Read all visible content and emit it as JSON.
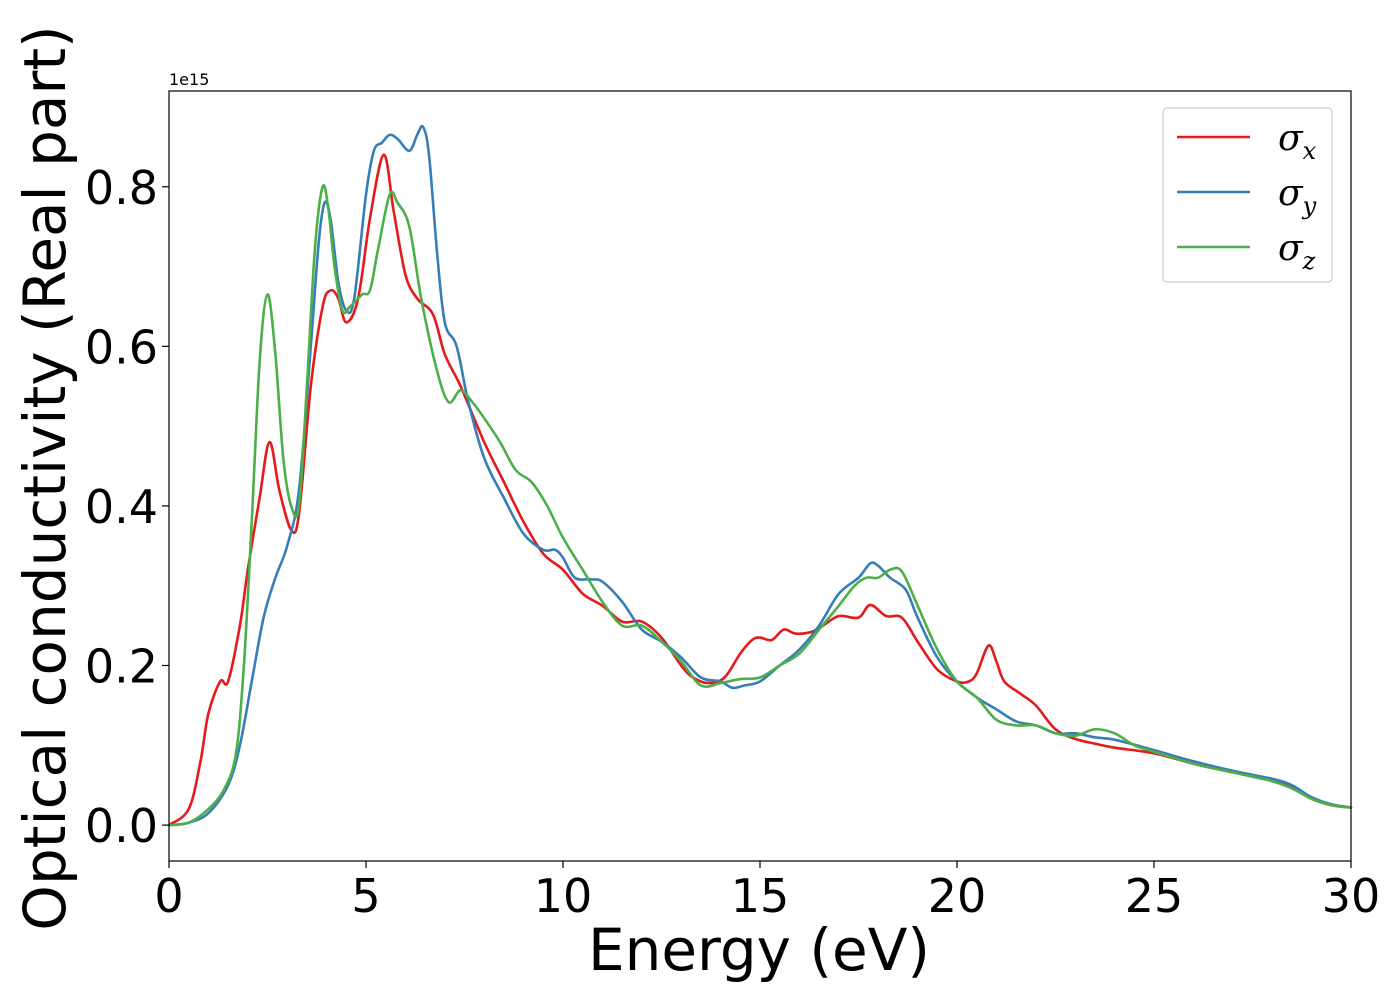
{
  "chart_data": {
    "type": "line",
    "xlabel": "Energy (eV)",
    "ylabel": "Optical conductivity (Real part)",
    "y_offset_label": "1e15",
    "xlim": [
      0,
      30
    ],
    "ylim": [
      -0.045,
      0.92
    ],
    "x_ticks": [
      0,
      5,
      10,
      15,
      20,
      25,
      30
    ],
    "x_tick_labels": [
      "0",
      "5",
      "10",
      "15",
      "20",
      "25",
      "30"
    ],
    "y_ticks": [
      0.0,
      0.2,
      0.4,
      0.6,
      0.8
    ],
    "y_tick_labels": [
      "0.0",
      "0.2",
      "0.4",
      "0.6",
      "0.8"
    ],
    "grid": false,
    "legend_position": "top-right",
    "series": [
      {
        "name": "σx",
        "legend_base": "σ",
        "legend_sub": "x",
        "color": "#e41a1c",
        "points": [
          [
            0,
            0
          ],
          [
            0.5,
            0.02
          ],
          [
            0.8,
            0.08
          ],
          [
            1.0,
            0.14
          ],
          [
            1.3,
            0.18
          ],
          [
            1.5,
            0.18
          ],
          [
            1.8,
            0.25
          ],
          [
            2.0,
            0.32
          ],
          [
            2.3,
            0.41
          ],
          [
            2.55,
            0.48
          ],
          [
            2.8,
            0.42
          ],
          [
            3.1,
            0.37
          ],
          [
            3.3,
            0.39
          ],
          [
            3.6,
            0.55
          ],
          [
            3.9,
            0.65
          ],
          [
            4.1,
            0.67
          ],
          [
            4.3,
            0.66
          ],
          [
            4.5,
            0.63
          ],
          [
            4.8,
            0.66
          ],
          [
            5.1,
            0.76
          ],
          [
            5.45,
            0.84
          ],
          [
            5.7,
            0.77
          ],
          [
            6.0,
            0.69
          ],
          [
            6.3,
            0.66
          ],
          [
            6.7,
            0.64
          ],
          [
            7.0,
            0.59
          ],
          [
            7.4,
            0.55
          ],
          [
            8.0,
            0.48
          ],
          [
            8.5,
            0.43
          ],
          [
            9.0,
            0.38
          ],
          [
            9.5,
            0.34
          ],
          [
            10.0,
            0.32
          ],
          [
            10.5,
            0.29
          ],
          [
            11.0,
            0.275
          ],
          [
            11.5,
            0.255
          ],
          [
            12.0,
            0.255
          ],
          [
            12.5,
            0.235
          ],
          [
            13.0,
            0.2
          ],
          [
            13.3,
            0.185
          ],
          [
            13.7,
            0.178
          ],
          [
            14.1,
            0.185
          ],
          [
            14.5,
            0.215
          ],
          [
            14.8,
            0.232
          ],
          [
            15.0,
            0.235
          ],
          [
            15.3,
            0.232
          ],
          [
            15.6,
            0.245
          ],
          [
            15.9,
            0.24
          ],
          [
            16.3,
            0.242
          ],
          [
            16.6,
            0.25
          ],
          [
            17.0,
            0.262
          ],
          [
            17.5,
            0.26
          ],
          [
            17.8,
            0.276
          ],
          [
            18.2,
            0.262
          ],
          [
            18.6,
            0.26
          ],
          [
            19.0,
            0.23
          ],
          [
            19.5,
            0.195
          ],
          [
            20.0,
            0.18
          ],
          [
            20.3,
            0.18
          ],
          [
            20.5,
            0.19
          ],
          [
            20.8,
            0.225
          ],
          [
            21.0,
            0.205
          ],
          [
            21.2,
            0.18
          ],
          [
            21.6,
            0.165
          ],
          [
            22.0,
            0.15
          ],
          [
            22.5,
            0.12
          ],
          [
            23.0,
            0.108
          ],
          [
            23.5,
            0.102
          ],
          [
            24.0,
            0.097
          ],
          [
            25.0,
            0.09
          ],
          [
            26.0,
            0.077
          ],
          [
            27.0,
            0.066
          ],
          [
            28.0,
            0.056
          ],
          [
            28.5,
            0.047
          ],
          [
            29.0,
            0.033
          ],
          [
            29.5,
            0.025
          ],
          [
            30,
            0.022
          ]
        ]
      },
      {
        "name": "σy",
        "legend_base": "σ",
        "legend_sub": "y",
        "color": "#377eb8",
        "points": [
          [
            0,
            0
          ],
          [
            0.5,
            0.003
          ],
          [
            1.0,
            0.015
          ],
          [
            1.5,
            0.05
          ],
          [
            1.8,
            0.1
          ],
          [
            2.1,
            0.18
          ],
          [
            2.4,
            0.26
          ],
          [
            2.7,
            0.31
          ],
          [
            3.0,
            0.35
          ],
          [
            3.3,
            0.42
          ],
          [
            3.6,
            0.6
          ],
          [
            3.8,
            0.73
          ],
          [
            3.95,
            0.78
          ],
          [
            4.1,
            0.76
          ],
          [
            4.3,
            0.68
          ],
          [
            4.5,
            0.645
          ],
          [
            4.7,
            0.66
          ],
          [
            5.0,
            0.79
          ],
          [
            5.2,
            0.845
          ],
          [
            5.4,
            0.855
          ],
          [
            5.6,
            0.865
          ],
          [
            5.8,
            0.86
          ],
          [
            6.1,
            0.845
          ],
          [
            6.3,
            0.865
          ],
          [
            6.45,
            0.875
          ],
          [
            6.6,
            0.84
          ],
          [
            6.8,
            0.72
          ],
          [
            7.0,
            0.63
          ],
          [
            7.3,
            0.6
          ],
          [
            7.6,
            0.53
          ],
          [
            8.0,
            0.46
          ],
          [
            8.5,
            0.41
          ],
          [
            9.0,
            0.365
          ],
          [
            9.5,
            0.345
          ],
          [
            9.8,
            0.345
          ],
          [
            10.0,
            0.335
          ],
          [
            10.3,
            0.31
          ],
          [
            10.7,
            0.308
          ],
          [
            11.0,
            0.305
          ],
          [
            11.5,
            0.28
          ],
          [
            12.0,
            0.245
          ],
          [
            12.5,
            0.23
          ],
          [
            13.0,
            0.21
          ],
          [
            13.5,
            0.185
          ],
          [
            14.0,
            0.18
          ],
          [
            14.3,
            0.172
          ],
          [
            14.6,
            0.175
          ],
          [
            15.0,
            0.18
          ],
          [
            15.5,
            0.2
          ],
          [
            16.0,
            0.22
          ],
          [
            16.5,
            0.25
          ],
          [
            17.0,
            0.29
          ],
          [
            17.5,
            0.31
          ],
          [
            17.8,
            0.328
          ],
          [
            18.0,
            0.325
          ],
          [
            18.3,
            0.31
          ],
          [
            18.7,
            0.295
          ],
          [
            19.0,
            0.26
          ],
          [
            19.5,
            0.21
          ],
          [
            20.0,
            0.18
          ],
          [
            20.5,
            0.16
          ],
          [
            21.0,
            0.145
          ],
          [
            21.5,
            0.13
          ],
          [
            22.0,
            0.125
          ],
          [
            22.5,
            0.115
          ],
          [
            23.0,
            0.115
          ],
          [
            23.5,
            0.11
          ],
          [
            24.0,
            0.107
          ],
          [
            25.0,
            0.094
          ],
          [
            26.0,
            0.08
          ],
          [
            27.0,
            0.068
          ],
          [
            28.0,
            0.058
          ],
          [
            28.5,
            0.05
          ],
          [
            29.0,
            0.035
          ],
          [
            29.5,
            0.026
          ],
          [
            30,
            0.022
          ]
        ]
      },
      {
        "name": "σz",
        "legend_base": "σ",
        "legend_sub": "z",
        "color": "#4daf4a",
        "points": [
          [
            0,
            0
          ],
          [
            0.5,
            0.003
          ],
          [
            1.0,
            0.02
          ],
          [
            1.4,
            0.045
          ],
          [
            1.7,
            0.09
          ],
          [
            1.9,
            0.2
          ],
          [
            2.1,
            0.38
          ],
          [
            2.3,
            0.58
          ],
          [
            2.5,
            0.665
          ],
          [
            2.7,
            0.59
          ],
          [
            2.9,
            0.46
          ],
          [
            3.1,
            0.4
          ],
          [
            3.3,
            0.4
          ],
          [
            3.5,
            0.55
          ],
          [
            3.7,
            0.72
          ],
          [
            3.9,
            0.8
          ],
          [
            4.05,
            0.77
          ],
          [
            4.2,
            0.7
          ],
          [
            4.4,
            0.645
          ],
          [
            4.6,
            0.65
          ],
          [
            4.9,
            0.665
          ],
          [
            5.1,
            0.67
          ],
          [
            5.3,
            0.72
          ],
          [
            5.6,
            0.79
          ],
          [
            5.8,
            0.78
          ],
          [
            6.1,
            0.75
          ],
          [
            6.4,
            0.66
          ],
          [
            6.8,
            0.57
          ],
          [
            7.1,
            0.53
          ],
          [
            7.4,
            0.545
          ],
          [
            7.7,
            0.53
          ],
          [
            8.0,
            0.51
          ],
          [
            8.4,
            0.48
          ],
          [
            8.8,
            0.445
          ],
          [
            9.2,
            0.43
          ],
          [
            9.6,
            0.4
          ],
          [
            10.0,
            0.36
          ],
          [
            10.5,
            0.32
          ],
          [
            11.0,
            0.28
          ],
          [
            11.5,
            0.25
          ],
          [
            12.0,
            0.25
          ],
          [
            12.5,
            0.23
          ],
          [
            13.0,
            0.205
          ],
          [
            13.5,
            0.175
          ],
          [
            14.0,
            0.178
          ],
          [
            14.5,
            0.183
          ],
          [
            15.0,
            0.185
          ],
          [
            15.5,
            0.2
          ],
          [
            16.0,
            0.215
          ],
          [
            16.5,
            0.245
          ],
          [
            17.0,
            0.275
          ],
          [
            17.4,
            0.3
          ],
          [
            17.7,
            0.31
          ],
          [
            18.0,
            0.31
          ],
          [
            18.3,
            0.32
          ],
          [
            18.6,
            0.318
          ],
          [
            19.0,
            0.275
          ],
          [
            19.5,
            0.22
          ],
          [
            20.0,
            0.18
          ],
          [
            20.5,
            0.16
          ],
          [
            21.0,
            0.132
          ],
          [
            21.5,
            0.125
          ],
          [
            22.0,
            0.125
          ],
          [
            22.5,
            0.115
          ],
          [
            23.0,
            0.112
          ],
          [
            23.5,
            0.12
          ],
          [
            24.0,
            0.115
          ],
          [
            24.5,
            0.1
          ],
          [
            25.0,
            0.092
          ],
          [
            26.0,
            0.077
          ],
          [
            27.0,
            0.066
          ],
          [
            28.0,
            0.055
          ],
          [
            28.5,
            0.046
          ],
          [
            29.0,
            0.033
          ],
          [
            29.5,
            0.025
          ],
          [
            30,
            0.022
          ]
        ]
      }
    ]
  }
}
